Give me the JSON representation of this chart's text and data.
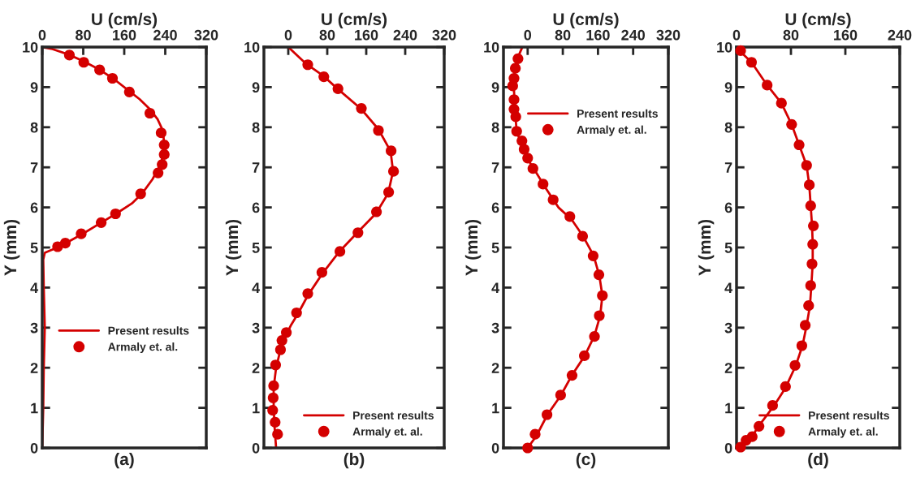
{
  "chart_data": [
    {
      "type": "line",
      "xlabel": "U (cm/s)",
      "ylabel": "Y (mm)",
      "xlim": [
        0,
        320
      ],
      "xticks": [
        0,
        80,
        160,
        240,
        320
      ],
      "ylim": [
        0,
        10
      ],
      "yticks": [
        0,
        1,
        2,
        3,
        4,
        5,
        6,
        7,
        8,
        9,
        10
      ],
      "legend": "lower center",
      "grid": false,
      "annotations": [
        "(a)"
      ],
      "series": [
        {
          "name": "Present results",
          "marker": "none",
          "line_style": "solid",
          "color": "#d40000",
          "x": [
            0,
            2,
            3,
            5,
            3,
            2,
            5,
            20,
            45,
            80,
            115,
            145,
            175,
            195,
            215,
            232,
            238,
            236,
            225,
            210,
            190,
            170,
            140,
            110,
            80,
            50,
            20,
            0
          ],
          "values": [
            0,
            1,
            2,
            3,
            4,
            4.7,
            4.87,
            4.95,
            5.1,
            5.35,
            5.62,
            5.85,
            6.1,
            6.35,
            6.7,
            7.1,
            7.5,
            7.9,
            8.2,
            8.45,
            8.7,
            8.9,
            9.2,
            9.45,
            9.65,
            9.82,
            9.95,
            10
          ]
        },
        {
          "name": "Armaly et. al.",
          "type": "scatter",
          "marker": "circle",
          "color": "#d40000",
          "x": [
            53,
            81,
            112,
            137,
            170,
            210,
            232,
            238,
            238,
            234,
            226,
            192,
            143,
            115,
            76,
            45,
            30
          ],
          "values": [
            9.8,
            9.62,
            9.43,
            9.22,
            8.88,
            8.35,
            7.86,
            7.56,
            7.32,
            7.07,
            6.86,
            6.34,
            5.84,
            5.62,
            5.34,
            5.11,
            5.02
          ]
        }
      ]
    },
    {
      "type": "line",
      "xlabel": "U (cm/s)",
      "ylabel": "Y (mm)",
      "xlim": [
        -50,
        320
      ],
      "xticks": [
        0,
        80,
        160,
        240,
        320
      ],
      "ylim": [
        0,
        10
      ],
      "yticks": [
        0,
        1,
        2,
        3,
        4,
        5,
        6,
        7,
        8,
        9,
        10
      ],
      "legend": "lower right",
      "grid": false,
      "annotations": [
        "(b)"
      ],
      "series": [
        {
          "name": "Present results",
          "marker": "none",
          "line_style": "solid",
          "color": "#d40000",
          "x": [
            -25,
            -28,
            -30,
            -30,
            -25,
            -15,
            -5,
            5,
            20,
            40,
            70,
            105,
            140,
            180,
            205,
            215,
            210,
            185,
            150,
            102,
            70,
            35,
            0
          ],
          "values": [
            0,
            0.5,
            1,
            1.5,
            2,
            2.5,
            2.8,
            3.05,
            3.35,
            3.8,
            4.35,
            4.9,
            5.35,
            5.85,
            6.35,
            6.9,
            7.4,
            7.95,
            8.45,
            8.95,
            9.3,
            9.6,
            10
          ]
        },
        {
          "name": "Armaly et. al.",
          "type": "scatter",
          "marker": "circle",
          "color": "#d40000",
          "x": [
            40,
            73,
            102,
            150,
            185,
            211,
            216,
            206,
            181,
            143,
            106,
            69,
            40,
            17,
            -4,
            -13,
            -16,
            -26,
            -30,
            -31,
            -32,
            -27,
            -22
          ],
          "values": [
            9.56,
            9.26,
            8.96,
            8.47,
            7.92,
            7.41,
            6.9,
            6.38,
            5.89,
            5.37,
            4.9,
            4.38,
            3.85,
            3.37,
            2.88,
            2.68,
            2.45,
            2.07,
            1.55,
            1.25,
            0.94,
            0.64,
            0.34
          ]
        }
      ]
    },
    {
      "type": "line",
      "xlabel": "U (cm/s)",
      "ylabel": "Y (mm)",
      "xlim": [
        -55,
        320
      ],
      "xticks": [
        0,
        80,
        160,
        240,
        320
      ],
      "ylim": [
        0,
        10
      ],
      "yticks": [
        0,
        1,
        2,
        3,
        4,
        5,
        6,
        7,
        8,
        9,
        10
      ],
      "legend": "upper right",
      "grid": false,
      "annotations": [
        "(c)"
      ],
      "series": [
        {
          "name": "Present results",
          "marker": "none",
          "line_style": "solid",
          "color": "#d40000",
          "x": [
            0,
            20,
            45,
            75,
            100,
            130,
            152,
            165,
            170,
            163,
            150,
            125,
            100,
            70,
            40,
            15,
            0,
            -15,
            -25,
            -28,
            -30,
            -32,
            -28,
            -20,
            -12
          ],
          "values": [
            0,
            0.3,
            0.83,
            1.3,
            1.8,
            2.3,
            2.8,
            3.3,
            3.8,
            4.3,
            4.8,
            5.3,
            5.7,
            6.0,
            6.5,
            6.95,
            7.2,
            7.6,
            7.9,
            8.3,
            8.7,
            9.1,
            9.5,
            9.8,
            10
          ]
        },
        {
          "name": "Armaly et. al.",
          "type": "scatter",
          "marker": "circle",
          "color": "#d40000",
          "x": [
            -22,
            -28,
            -31,
            -34,
            -31,
            -31,
            -27,
            -25,
            -13,
            -8,
            0,
            12,
            35,
            58,
            96,
            125,
            149,
            162,
            170,
            163,
            152,
            129,
            101,
            75,
            44,
            17,
            0
          ],
          "values": [
            9.71,
            9.47,
            9.22,
            9.03,
            8.69,
            8.45,
            8.26,
            7.9,
            7.66,
            7.45,
            7.23,
            6.97,
            6.58,
            6.19,
            5.77,
            5.28,
            4.79,
            4.32,
            3.8,
            3.3,
            2.78,
            2.3,
            1.81,
            1.32,
            0.83,
            0.34,
            0
          ]
        }
      ]
    },
    {
      "type": "line",
      "xlabel": "U (cm/s)",
      "ylabel": "Y (mm)",
      "xlim": [
        0,
        240
      ],
      "xticks": [
        0,
        80,
        160,
        240
      ],
      "ylim": [
        0,
        10
      ],
      "yticks": [
        0,
        1,
        2,
        3,
        4,
        5,
        6,
        7,
        8,
        9,
        10
      ],
      "legend": "lower right",
      "grid": false,
      "annotations": [
        "(d)"
      ],
      "series": [
        {
          "name": "Present results",
          "marker": "none",
          "line_style": "solid",
          "color": "#d40000",
          "x": [
            0,
            12,
            25,
            35,
            55,
            72,
            87,
            97,
            103,
            108,
            110,
            112,
            112,
            111,
            109,
            107,
            103,
            92,
            81,
            66,
            45,
            22,
            5,
            0
          ],
          "values": [
            0,
            0.15,
            0.35,
            0.6,
            1.05,
            1.5,
            2.05,
            2.55,
            3.05,
            3.55,
            4.05,
            4.6,
            5.1,
            5.55,
            6.05,
            6.55,
            7.05,
            7.56,
            8.07,
            8.6,
            9.05,
            9.62,
            9.9,
            10
          ]
        },
        {
          "name": "Armaly et. al.",
          "type": "scatter",
          "marker": "circle",
          "color": "#d40000",
          "x": [
            6,
            22,
            45,
            66,
            81,
            92,
            103,
            107,
            109,
            113,
            112,
            111,
            109,
            106,
            101,
            96,
            86,
            72,
            53,
            33,
            23,
            14,
            6
          ],
          "values": [
            9.91,
            9.62,
            9.05,
            8.6,
            8.07,
            7.56,
            7.05,
            6.56,
            6.04,
            5.54,
            5.08,
            4.59,
            4.05,
            3.55,
            3.06,
            2.55,
            2.06,
            1.53,
            1.06,
            0.54,
            0.28,
            0.19,
            0.02
          ]
        }
      ]
    }
  ]
}
